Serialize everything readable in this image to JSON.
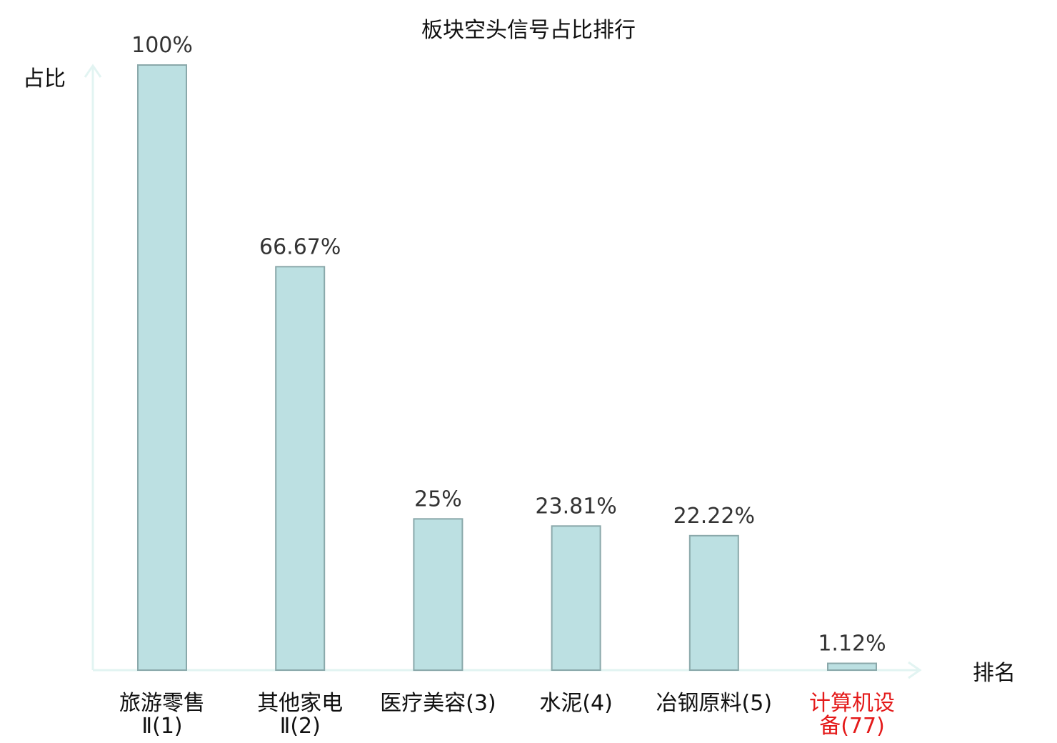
{
  "chart_data": {
    "type": "bar",
    "title": "板块空头信号占比排行",
    "ylabel": "占比",
    "xlabel": "排名",
    "ylim": [
      0,
      100
    ],
    "categories": [
      {
        "lines": [
          "旅游零售",
          "Ⅱ(1)"
        ],
        "highlight": false
      },
      {
        "lines": [
          "其他家电",
          "Ⅱ(2)"
        ],
        "highlight": false
      },
      {
        "lines": [
          "医疗美容(3)"
        ],
        "highlight": false
      },
      {
        "lines": [
          "水泥(4)"
        ],
        "highlight": false
      },
      {
        "lines": [
          "冶钢原料(5)"
        ],
        "highlight": false
      },
      {
        "lines": [
          "计算机设",
          "备(77)"
        ],
        "highlight": true
      }
    ],
    "values": [
      100,
      66.67,
      25,
      23.81,
      22.22,
      1.12
    ],
    "value_labels": [
      "100%",
      "66.67%",
      "25%",
      "23.81%",
      "22.22%",
      "1.12%"
    ],
    "colors": {
      "bar_fill": "#bce0e2",
      "bar_stroke": "#8aa8aa",
      "axis": "#e2f4f2",
      "highlight": "#e41a1a",
      "text": "#111111"
    }
  }
}
